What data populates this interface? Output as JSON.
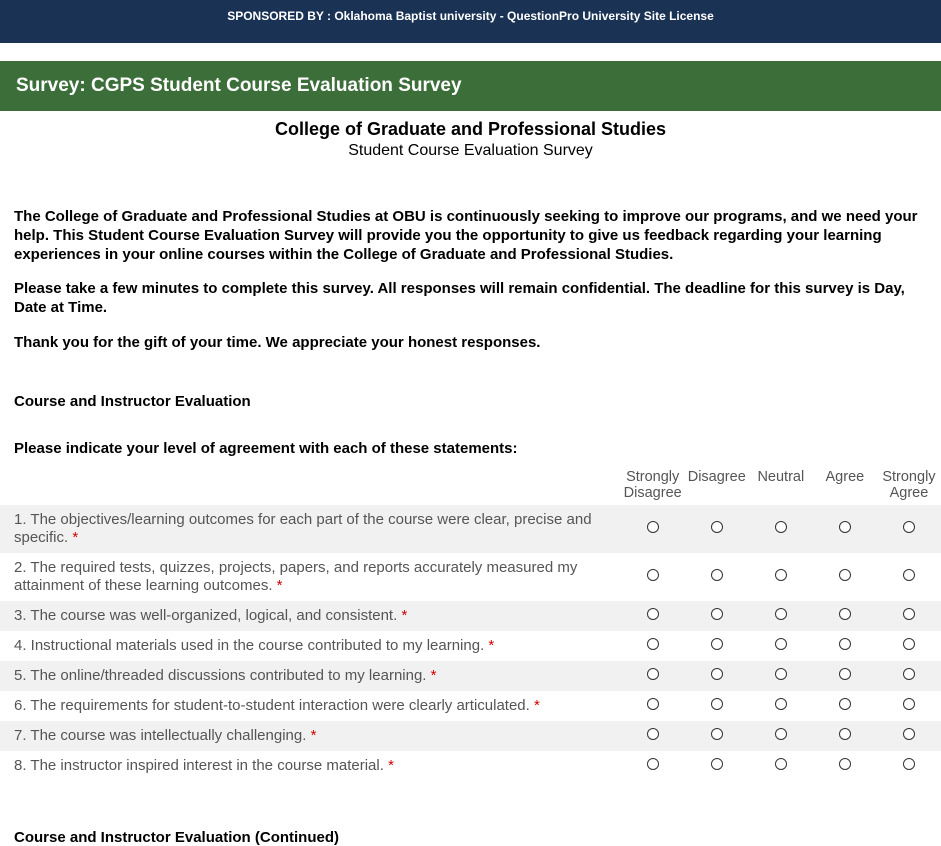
{
  "colors": {
    "sponsor_bg": "#1a3254",
    "title_bg": "#3c6e3a",
    "text": "#000000",
    "muted": "#555555",
    "row_alt": "#f1f1f1",
    "required": "#d40000",
    "page_bg": "#ffffff"
  },
  "sponsor_text": "SPONSORED BY : Oklahoma Baptist university - QuestionPro University Site License",
  "survey_title": "Survey: CGPS Student Course Evaluation Survey",
  "header": {
    "title": "College of Graduate and Professional Studies",
    "subtitle": "Student Course Evaluation Survey"
  },
  "intro": {
    "p1": "The College of Graduate and Professional Studies at OBU is continuously seeking to improve our programs, and we need your help. This Student Course Evaluation Survey will provide you the opportunity to give us feedback regarding your learning experiences in your online courses within the College of Graduate and Professional Studies.",
    "p2": "Please take a few minutes to complete this survey. All responses will remain confidential. The deadline for this survey is Day, Date at Time.",
    "p3": "Thank you for the gift of your time. We appreciate your honest responses."
  },
  "section1_heading": "Course and Instructor Evaluation",
  "matrix": {
    "instruction": "Please indicate your level of agreement with each of these statements:",
    "scale": [
      "Strongly Disagree",
      "Disagree",
      "Neutral",
      "Agree",
      "Strongly Agree"
    ],
    "required_marker": "*",
    "questions": [
      "1. The objectives/learning outcomes for each part of the course were clear, precise and specific.",
      "2. The required tests, quizzes, projects, papers, and reports accurately measured my attainment of these learning outcomes.",
      "3. The course was well-organized, logical, and consistent.",
      "4. Instructional materials used in the course contributed to my learning.",
      "5. The online/threaded discussions contributed to my learning.",
      "6. The requirements for student-to-student interaction were clearly articulated.",
      "7. The course was intellectually challenging.",
      "8. The instructor inspired interest in the course material."
    ]
  },
  "section2_heading": "Course and Instructor Evaluation (Continued)"
}
